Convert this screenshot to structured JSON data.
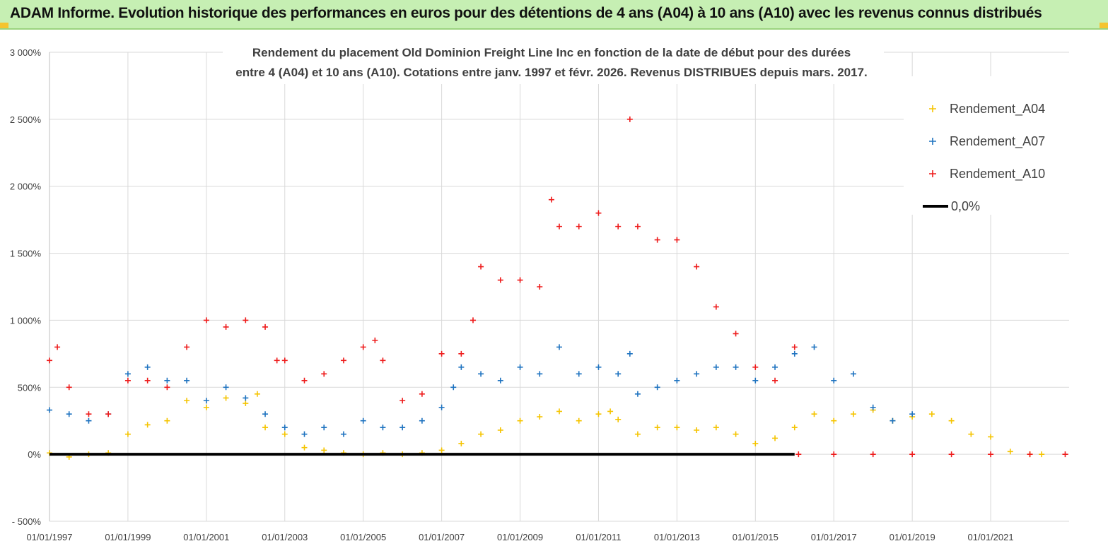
{
  "banner": {
    "title": "ADAM Informe. Evolution historique des performances en euros pour des détentions de 4 ans (A04) à 10 ans (A10) avec les revenus connus distribués"
  },
  "colors": {
    "banner_bg": "#c6efb3",
    "a04": "#f5c400",
    "a07": "#1f73c0",
    "a10": "#ee1c1c",
    "zero_line": "#000000",
    "grid": "#d9d9d9"
  },
  "chart_data": {
    "type": "scatter",
    "title_line1": "Rendement du placement Old Dominion Freight Line Inc en fonction de la date de début pour des durées",
    "title_line2": "entre 4 (A04) et 10 ans (A10). Cotations entre janv. 1997 et févr. 2026. Revenus DISTRIBUES depuis mars. 2017.",
    "ylabel": "",
    "xlabel": "",
    "ylim": [
      -500,
      3000
    ],
    "xlim": [
      1997.0,
      2023.0
    ],
    "y_ticks": [
      -500,
      0,
      500,
      1000,
      1500,
      2000,
      2500,
      3000
    ],
    "y_tick_labels": [
      "- 500%",
      "0%",
      "500%",
      "1 000%",
      "1 500%",
      "2 000%",
      "2 500%",
      "3 000%"
    ],
    "x_ticks": [
      1997,
      1999,
      2001,
      2003,
      2005,
      2007,
      2009,
      2011,
      2013,
      2015,
      2017,
      2019,
      2021
    ],
    "x_tick_labels": [
      "01/01/1997",
      "01/01/1999",
      "01/01/2001",
      "01/01/2003",
      "01/01/2005",
      "01/01/2007",
      "01/01/2009",
      "01/01/2011",
      "01/01/2013",
      "01/01/2015",
      "01/01/2017",
      "01/01/2019",
      "01/01/2021"
    ],
    "legend_position": "top-right",
    "marker": "+",
    "series": [
      {
        "name": "Rendement_A04",
        "color": "#f5c400",
        "x": [
          1997.0,
          1997.5,
          1998.0,
          1998.5,
          1999.0,
          1999.5,
          2000.0,
          2000.5,
          2001.0,
          2001.5,
          2002.0,
          2002.3,
          2002.5,
          2003.0,
          2003.5,
          2004.0,
          2004.5,
          2005.0,
          2005.5,
          2006.0,
          2006.5,
          2007.0,
          2007.5,
          2008.0,
          2008.5,
          2009.0,
          2009.5,
          2010.0,
          2010.5,
          2011.0,
          2011.3,
          2011.5,
          2012.0,
          2012.5,
          2013.0,
          2013.5,
          2014.0,
          2014.5,
          2015.0,
          2015.5,
          2016.0,
          2016.5,
          2017.0,
          2017.5,
          2018.0,
          2018.5,
          2019.0,
          2019.5,
          2020.0,
          2020.5,
          2021.0,
          2021.5,
          2022.0,
          2022.3
        ],
        "y": [
          10,
          -20,
          0,
          10,
          150,
          220,
          250,
          400,
          350,
          420,
          380,
          450,
          200,
          150,
          50,
          30,
          10,
          0,
          10,
          0,
          10,
          30,
          80,
          150,
          180,
          250,
          280,
          320,
          250,
          300,
          320,
          260,
          150,
          200,
          200,
          180,
          200,
          150,
          80,
          120,
          200,
          300,
          250,
          300,
          330,
          250,
          280,
          300,
          250,
          150,
          130,
          20,
          0,
          0
        ]
      },
      {
        "name": "Rendement_A07",
        "color": "#1f73c0",
        "x": [
          1997.0,
          1997.5,
          1998.0,
          1998.5,
          1999.0,
          1999.5,
          2000.0,
          2000.5,
          2001.0,
          2001.5,
          2002.0,
          2002.5,
          2003.0,
          2003.5,
          2004.0,
          2004.5,
          2005.0,
          2005.5,
          2006.0,
          2006.5,
          2007.0,
          2007.3,
          2007.5,
          2008.0,
          2008.5,
          2009.0,
          2009.5,
          2010.0,
          2010.5,
          2011.0,
          2011.5,
          2011.8,
          2012.0,
          2012.5,
          2013.0,
          2013.5,
          2014.0,
          2014.5,
          2015.0,
          2015.5,
          2016.0,
          2016.5,
          2017.0,
          2017.5,
          2018.0,
          2018.5,
          2019.0
        ],
        "y": [
          330,
          300,
          250,
          300,
          600,
          650,
          550,
          550,
          400,
          500,
          420,
          300,
          200,
          150,
          200,
          150,
          250,
          200,
          200,
          250,
          350,
          500,
          650,
          600,
          550,
          650,
          600,
          800,
          600,
          650,
          600,
          750,
          450,
          500,
          550,
          600,
          650,
          650,
          550,
          650,
          750,
          800,
          550,
          600,
          350,
          250,
          300
        ]
      },
      {
        "name": "Rendement_A10",
        "color": "#ee1c1c",
        "x": [
          1997.0,
          1997.2,
          1997.5,
          1998.0,
          1998.5,
          1999.0,
          1999.5,
          2000.0,
          2000.5,
          2001.0,
          2001.5,
          2002.0,
          2002.5,
          2002.8,
          2003.0,
          2003.5,
          2004.0,
          2004.5,
          2005.0,
          2005.3,
          2005.5,
          2006.0,
          2006.5,
          2007.0,
          2007.5,
          2007.8,
          2008.0,
          2008.5,
          2009.0,
          2009.5,
          2009.8,
          2010.0,
          2010.5,
          2011.0,
          2011.5,
          2011.8,
          2012.0,
          2012.5,
          2013.0,
          2013.5,
          2014.0,
          2014.5,
          2015.0,
          2015.5,
          2016.0,
          2016.1,
          2017.0,
          2018.0,
          2019.0,
          2020.0,
          2021.0,
          2022.0,
          2022.9
        ],
        "y": [
          700,
          800,
          500,
          300,
          300,
          550,
          550,
          500,
          800,
          1000,
          950,
          1000,
          950,
          700,
          700,
          550,
          600,
          700,
          800,
          850,
          700,
          400,
          450,
          750,
          750,
          1000,
          1400,
          1300,
          1300,
          1250,
          1900,
          1700,
          1700,
          1800,
          1700,
          2500,
          1700,
          1600,
          1600,
          1400,
          1100,
          900,
          650,
          550,
          800,
          0,
          0,
          0,
          0,
          0,
          0,
          0,
          0
        ]
      },
      {
        "name": "0,0%",
        "type": "line",
        "color": "#000000",
        "x": [
          1997.0,
          2016.0
        ],
        "y": [
          0,
          0
        ]
      }
    ]
  }
}
